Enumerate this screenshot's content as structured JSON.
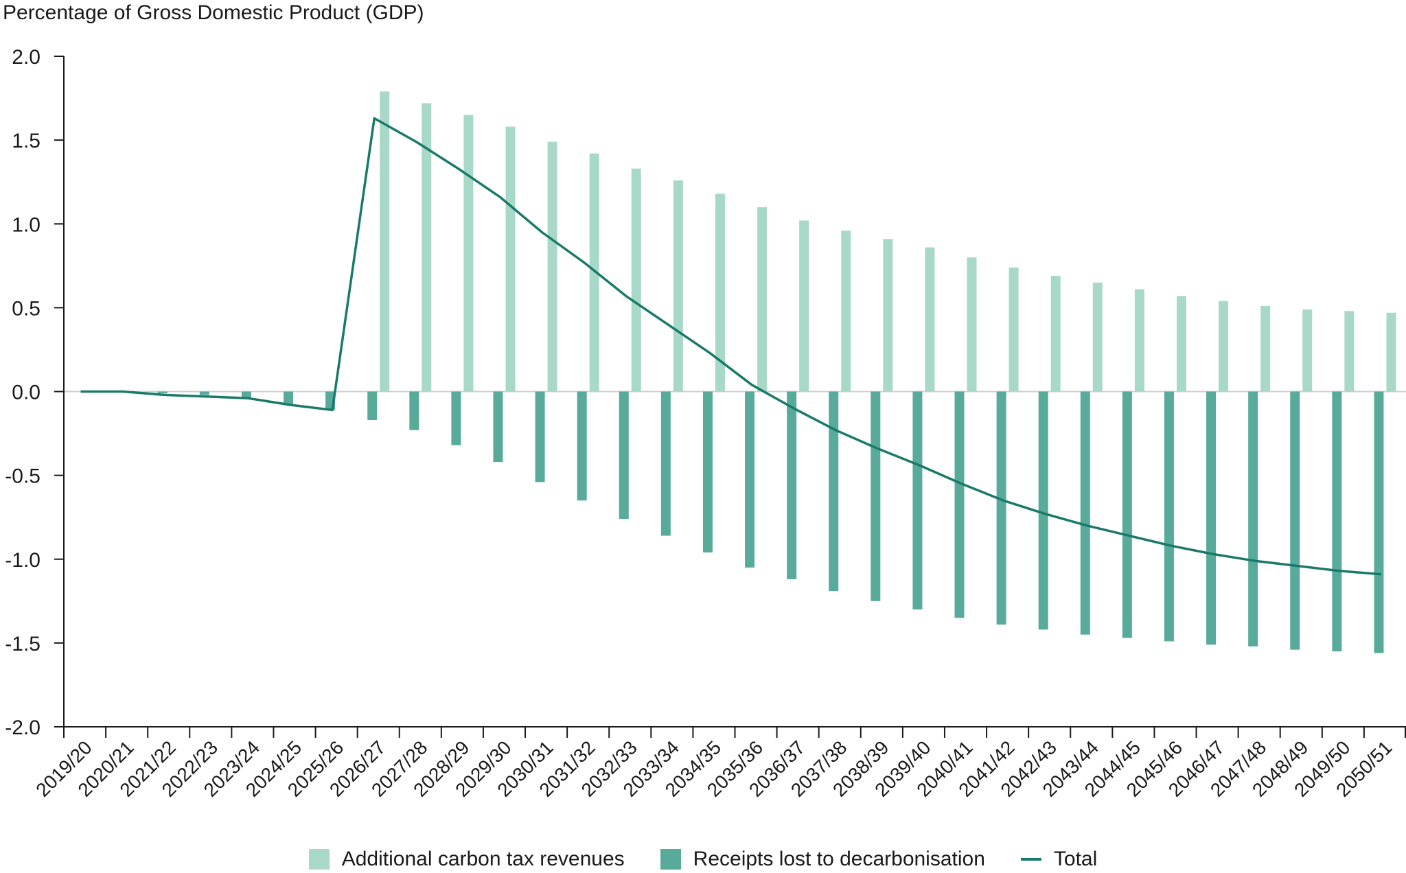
{
  "chart_data": {
    "type": "bar",
    "ylabel": "Percentage of Gross Domestic Product (GDP)",
    "xlabel": "",
    "ylim": [
      -2.0,
      2.0
    ],
    "yticks": [
      "2.0",
      "1.5",
      "1.0",
      "0.5",
      "0.0",
      "-0.5",
      "-1.0",
      "-1.5",
      "-2.0"
    ],
    "categories": [
      "2019/20",
      "2020/21",
      "2021/22",
      "2022/23",
      "2023/24",
      "2024/25",
      "2025/26",
      "2026/27",
      "2027/28",
      "2028/29",
      "2029/30",
      "2030/31",
      "2031/32",
      "2032/33",
      "2033/34",
      "2034/35",
      "2035/36",
      "2036/37",
      "2037/38",
      "2038/39",
      "2039/40",
      "2040/41",
      "2041/42",
      "2042/43",
      "2043/44",
      "2044/45",
      "2045/46",
      "2046/47",
      "2047/48",
      "2048/49",
      "2049/50",
      "2050/51"
    ],
    "series": [
      {
        "name": "Additional carbon tax revenues",
        "kind": "bar",
        "color": "#a8d8c8",
        "values": [
          0,
          0,
          0,
          0,
          0,
          0,
          0,
          1.79,
          1.72,
          1.65,
          1.58,
          1.49,
          1.42,
          1.33,
          1.26,
          1.18,
          1.1,
          1.02,
          0.96,
          0.91,
          0.86,
          0.8,
          0.74,
          0.69,
          0.65,
          0.61,
          0.57,
          0.54,
          0.51,
          0.49,
          0.48,
          0.47
        ]
      },
      {
        "name": "Receipts lost to decarbonisation",
        "kind": "bar",
        "color": "#58ab9a",
        "values": [
          0,
          0,
          -0.01,
          -0.02,
          -0.04,
          -0.08,
          -0.11,
          -0.17,
          -0.23,
          -0.32,
          -0.42,
          -0.54,
          -0.65,
          -0.76,
          -0.86,
          -0.96,
          -1.05,
          -1.12,
          -1.19,
          -1.25,
          -1.3,
          -1.35,
          -1.39,
          -1.42,
          -1.45,
          -1.47,
          -1.49,
          -1.51,
          -1.52,
          -1.54,
          -1.55,
          -1.56
        ]
      },
      {
        "name": "Total",
        "kind": "line",
        "color": "#1a7a6a",
        "values": [
          0.0,
          0.0,
          -0.02,
          -0.03,
          -0.04,
          -0.08,
          -0.11,
          1.63,
          1.49,
          1.33,
          1.16,
          0.95,
          0.77,
          0.57,
          0.4,
          0.23,
          0.04,
          -0.1,
          -0.23,
          -0.34,
          -0.44,
          -0.55,
          -0.65,
          -0.73,
          -0.8,
          -0.86,
          -0.92,
          -0.97,
          -1.01,
          -1.04,
          -1.07,
          -1.09
        ]
      }
    ],
    "legend_position": "bottom",
    "grid": false
  }
}
